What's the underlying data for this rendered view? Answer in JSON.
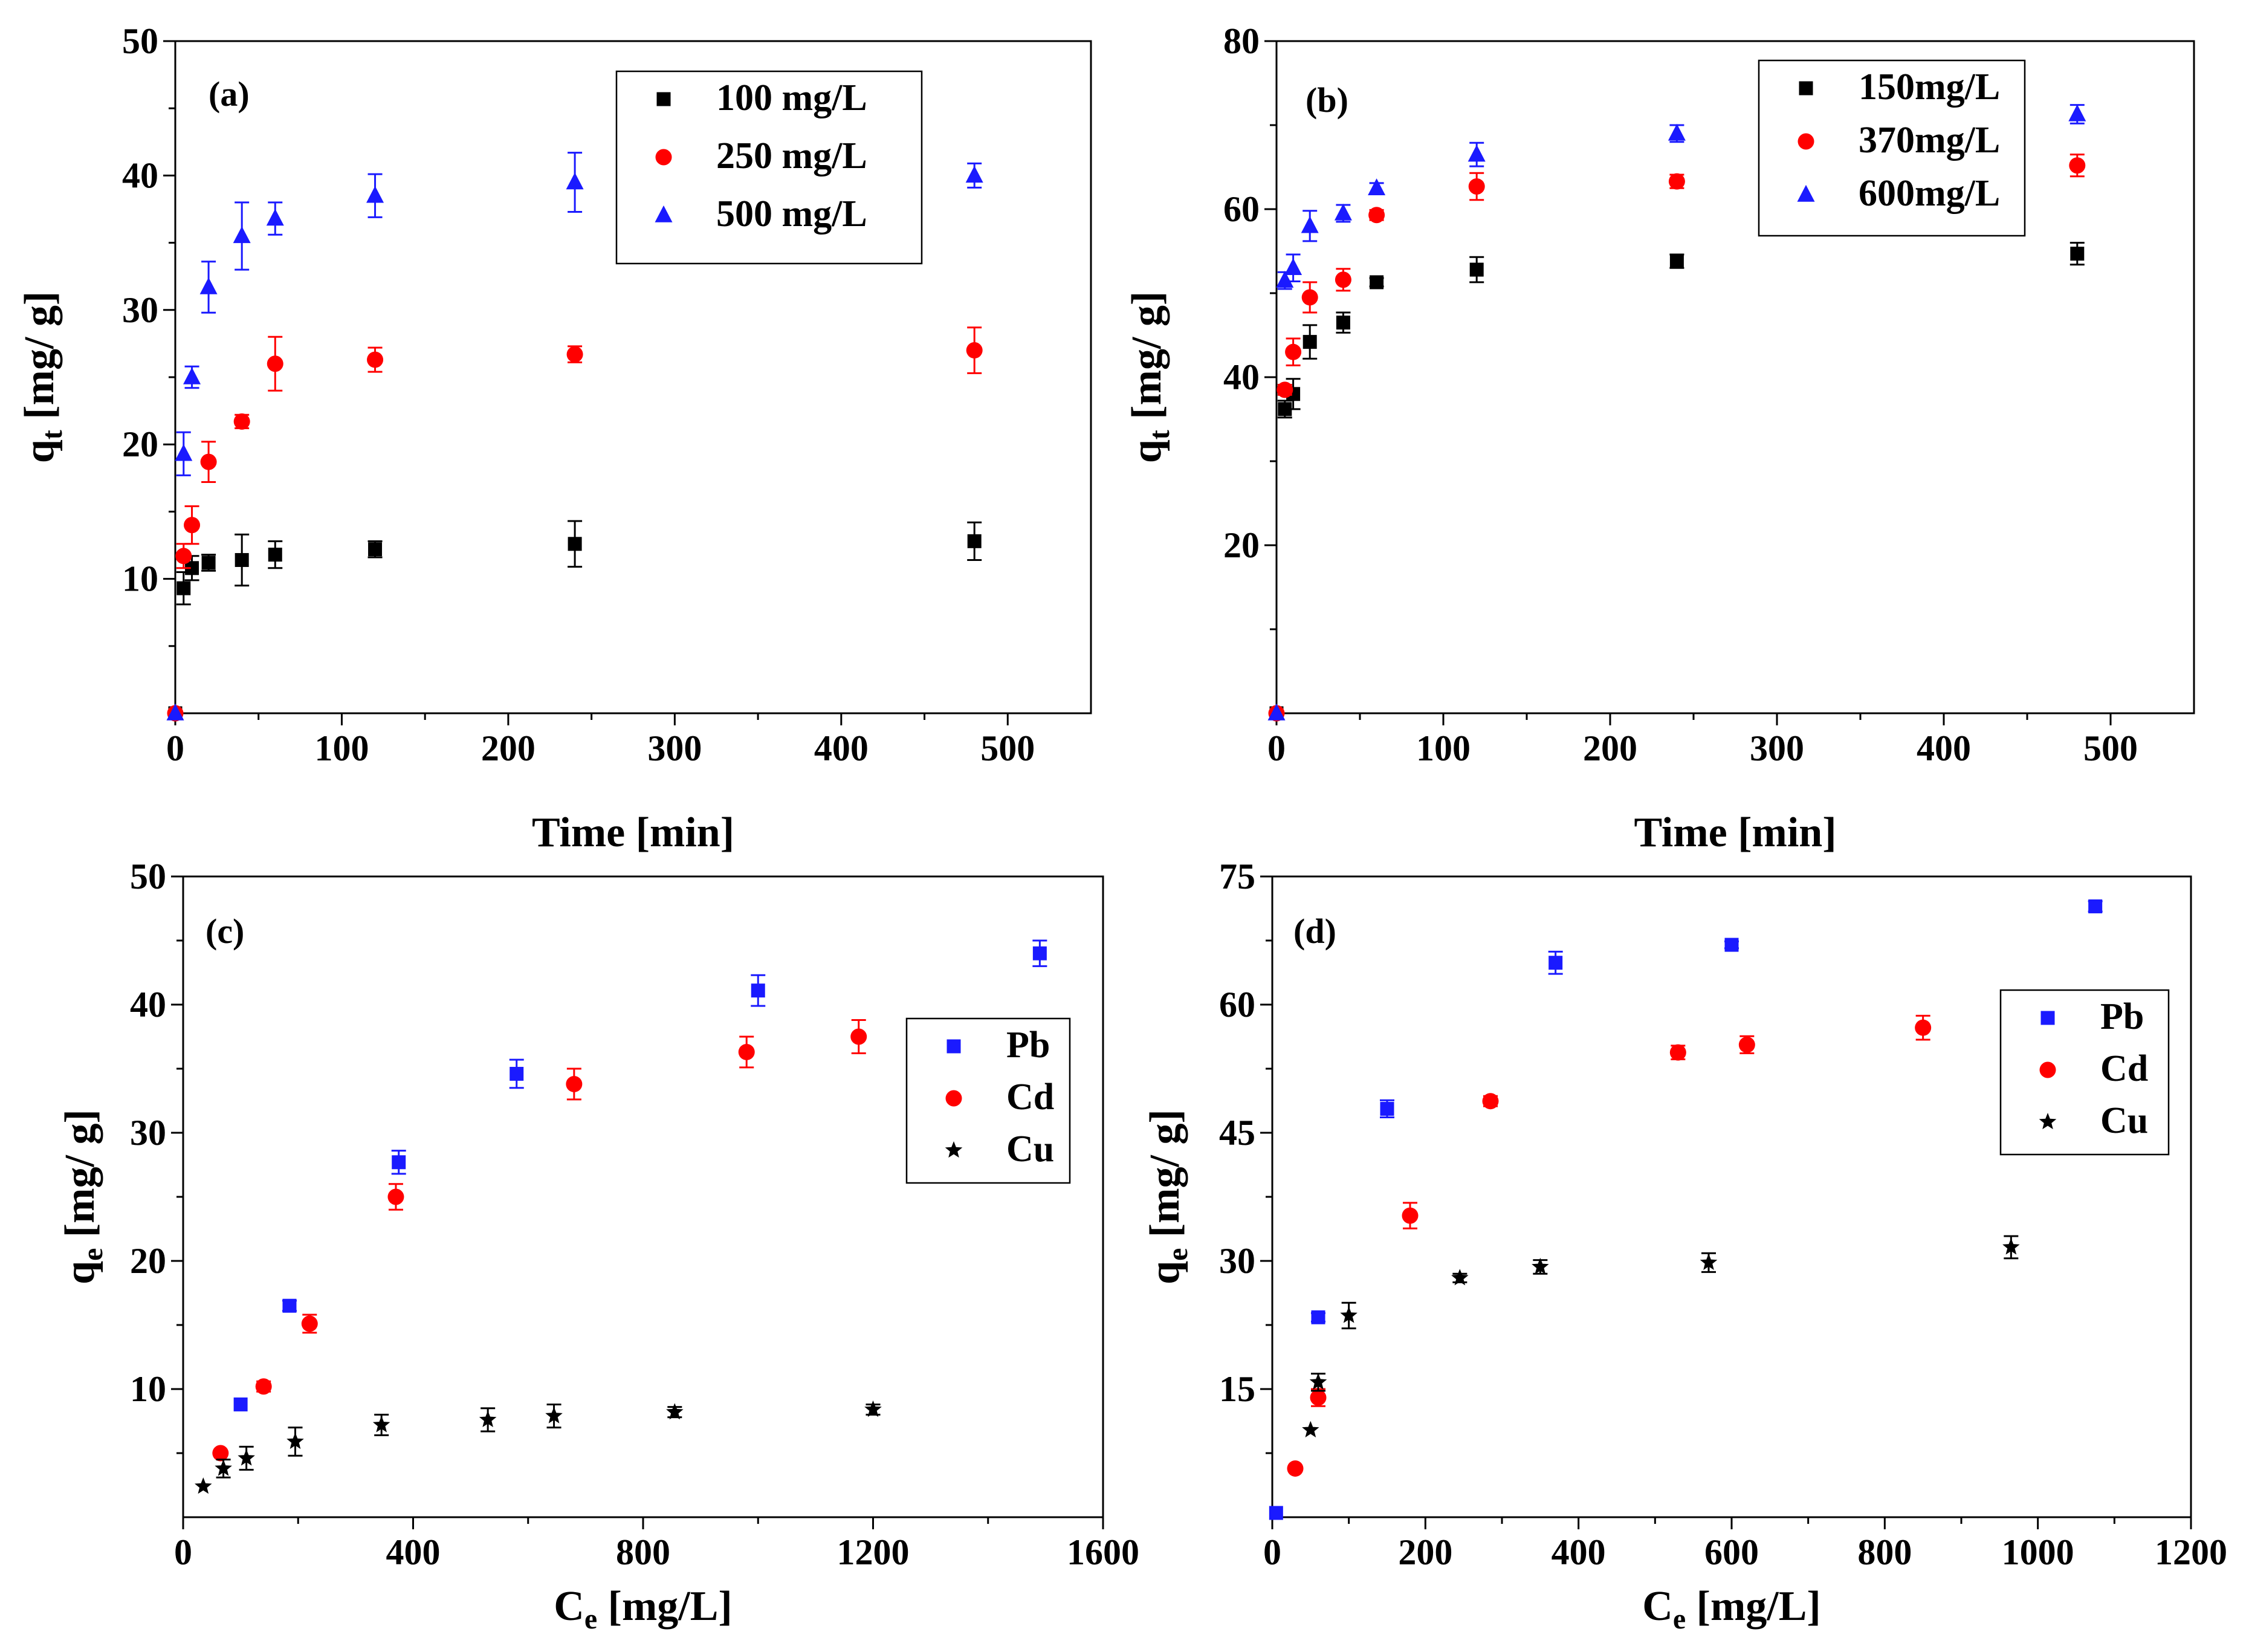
{
  "colors": {
    "black": "#000000",
    "red": "#ff0000",
    "blue": "#1a1aff"
  },
  "chart_data": [
    {
      "id": "a",
      "type": "scatter",
      "panel_label": "(a)",
      "xlabel": "Time [min]",
      "ylabel": "q_t [mg/ g]",
      "ylabel_main": "q",
      "ylabel_sub": "t",
      "ylabel_rest": " [mg/ g]",
      "xlim": [
        0,
        550
      ],
      "ylim": [
        0,
        50
      ],
      "xticks": [
        0,
        100,
        200,
        300,
        400,
        500
      ],
      "yticks": [
        10,
        20,
        30,
        40,
        50
      ],
      "legend_position": "top-right",
      "series": [
        {
          "name": "100 mg/L",
          "marker": "square",
          "color": "#000000",
          "x": [
            0,
            5,
            10,
            20,
            40,
            60,
            120,
            240,
            480
          ],
          "y": [
            0,
            9.3,
            10.8,
            11.2,
            11.4,
            11.8,
            12.2,
            12.6,
            12.8
          ],
          "err": [
            0,
            1.2,
            0.9,
            0.6,
            1.9,
            1.0,
            0.6,
            1.7,
            1.4
          ]
        },
        {
          "name": "250 mg/L",
          "marker": "circle",
          "color": "#ff0000",
          "x": [
            0,
            5,
            10,
            20,
            40,
            60,
            120,
            240,
            480
          ],
          "y": [
            0,
            11.7,
            14.0,
            18.7,
            21.7,
            26.0,
            26.3,
            26.7,
            27.0
          ],
          "err": [
            0,
            0.9,
            1.4,
            1.5,
            0.5,
            2.0,
            0.9,
            0.6,
            1.7
          ]
        },
        {
          "name": "500 mg/L",
          "marker": "triangle",
          "color": "#1a1aff",
          "x": [
            0,
            5,
            10,
            20,
            40,
            60,
            120,
            240,
            480
          ],
          "y": [
            0,
            19.3,
            25.0,
            31.7,
            35.5,
            36.8,
            38.5,
            39.5,
            40.0
          ],
          "err": [
            0,
            1.6,
            0.8,
            1.9,
            2.5,
            1.2,
            1.6,
            2.2,
            0.9
          ]
        }
      ]
    },
    {
      "id": "b",
      "type": "scatter",
      "panel_label": "(b)",
      "xlabel": "Time [min]",
      "ylabel": "q_t [mg/ g]",
      "ylabel_main": "q",
      "ylabel_sub": "t",
      "ylabel_rest": " [mg/ g]",
      "xlim": [
        0,
        550
      ],
      "ylim": [
        0,
        80
      ],
      "xticks": [
        0,
        100,
        200,
        300,
        400,
        500
      ],
      "yticks": [
        20,
        40,
        60,
        80
      ],
      "legend_position": "top-right",
      "series": [
        {
          "name": "150mg/L",
          "marker": "square",
          "color": "#000000",
          "x": [
            0,
            5,
            10,
            20,
            40,
            60,
            120,
            240,
            480
          ],
          "y": [
            0,
            36.2,
            38.0,
            44.2,
            46.5,
            51.3,
            52.8,
            53.8,
            54.7
          ],
          "err": [
            0,
            1.0,
            1.8,
            2.0,
            1.2,
            0.5,
            1.5,
            0.8,
            1.3
          ]
        },
        {
          "name": "370mg/L",
          "marker": "circle",
          "color": "#ff0000",
          "x": [
            0,
            5,
            10,
            20,
            40,
            60,
            120,
            240,
            480
          ],
          "y": [
            0,
            38.5,
            43.0,
            49.5,
            51.6,
            59.3,
            62.7,
            63.3,
            65.2
          ],
          "err": [
            0,
            0.6,
            1.6,
            1.8,
            1.3,
            0.6,
            1.6,
            0.8,
            1.3
          ]
        },
        {
          "name": "600mg/L",
          "marker": "triangle",
          "color": "#1a1aff",
          "x": [
            0,
            5,
            10,
            20,
            40,
            60,
            120,
            240,
            480
          ],
          "y": [
            0,
            51.5,
            53.0,
            58.0,
            59.5,
            62.5,
            66.5,
            69.0,
            71.3
          ],
          "err": [
            0,
            1.0,
            1.6,
            1.8,
            1.0,
            0.6,
            1.4,
            1.0,
            1.1
          ]
        }
      ]
    },
    {
      "id": "c",
      "type": "scatter",
      "panel_label": "(c)",
      "xlabel": "C_e [mg/L]",
      "xlabel_main": "C",
      "xlabel_sub": "e",
      "xlabel_rest": " [mg/L]",
      "ylabel": "q_e [mg/ g]",
      "ylabel_main": "q",
      "ylabel_sub": "e",
      "ylabel_rest": " [mg/ g]",
      "xlim": [
        0,
        1600
      ],
      "ylim": [
        0,
        50
      ],
      "xticks": [
        0,
        400,
        800,
        1200,
        1600
      ],
      "yticks": [
        10,
        20,
        30,
        40,
        50
      ],
      "legend_position": "right",
      "series": [
        {
          "name": "Pb",
          "marker": "square",
          "color": "#1a1aff",
          "x": [
            100,
            185,
            375,
            580,
            1000,
            1490
          ],
          "y": [
            8.8,
            16.5,
            27.7,
            34.6,
            41.1,
            44.0
          ],
          "err": [
            0,
            0.4,
            0.9,
            1.1,
            1.2,
            1.0
          ]
        },
        {
          "name": "Cd",
          "marker": "circle",
          "color": "#ff0000",
          "x": [
            65,
            140,
            220,
            370,
            680,
            980,
            1175
          ],
          "y": [
            5.0,
            10.2,
            15.1,
            25.0,
            33.8,
            36.3,
            37.5
          ],
          "err": [
            0,
            0.4,
            0.7,
            1.0,
            1.2,
            1.2,
            1.3
          ]
        },
        {
          "name": "Cu",
          "marker": "star",
          "color": "#000000",
          "x": [
            35,
            70,
            110,
            195,
            345,
            530,
            645,
            855,
            1200
          ],
          "y": [
            2.4,
            3.8,
            4.6,
            5.9,
            7.2,
            7.6,
            7.9,
            8.2,
            8.4
          ],
          "err": [
            0,
            0.7,
            0.9,
            1.1,
            0.8,
            0.9,
            0.9,
            0.4,
            0.4
          ]
        }
      ]
    },
    {
      "id": "d",
      "type": "scatter",
      "panel_label": "(d)",
      "xlabel": "C_e [mg/L]",
      "xlabel_main": "C",
      "xlabel_sub": "e",
      "xlabel_rest": " [mg/L]",
      "ylabel": "q_e [mg/ g]",
      "ylabel_main": "q",
      "ylabel_sub": "e",
      "ylabel_rest": " [mg/ g]",
      "xlim": [
        0,
        1200
      ],
      "ylim": [
        0,
        75
      ],
      "xticks": [
        0,
        200,
        400,
        600,
        800,
        1000,
        1200
      ],
      "yticks": [
        15,
        30,
        45,
        60,
        75
      ],
      "legend_position": "right",
      "series": [
        {
          "name": "Pb",
          "marker": "square",
          "color": "#1a1aff",
          "x": [
            5,
            60,
            150,
            370,
            600,
            1075
          ],
          "y": [
            0.5,
            23.4,
            47.8,
            64.9,
            67.0,
            71.5
          ],
          "err": [
            0,
            0.5,
            1.0,
            1.3,
            0.4,
            0.6
          ]
        },
        {
          "name": "Cd",
          "marker": "circle",
          "color": "#ff0000",
          "x": [
            30,
            60,
            180,
            285,
            530,
            620,
            850
          ],
          "y": [
            5.7,
            14.0,
            35.3,
            48.7,
            54.4,
            55.3,
            57.3
          ],
          "err": [
            0,
            1.0,
            1.5,
            0.6,
            0.8,
            1.0,
            1.4
          ]
        },
        {
          "name": "Cu",
          "marker": "star",
          "color": "#000000",
          "x": [
            50,
            60,
            100,
            245,
            350,
            570,
            965
          ],
          "y": [
            10.2,
            15.8,
            23.6,
            28.0,
            29.3,
            29.8,
            31.6
          ],
          "err": [
            0,
            1.0,
            1.5,
            0.5,
            0.8,
            1.1,
            1.3
          ]
        }
      ]
    }
  ]
}
